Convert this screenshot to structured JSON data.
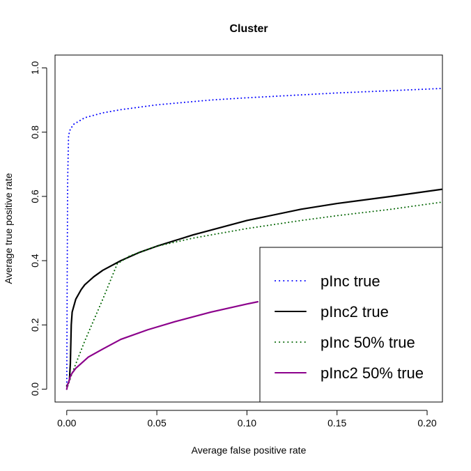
{
  "chart_data": {
    "type": "line",
    "title": "Cluster",
    "xlabel": "Average false positive rate",
    "ylabel": "Average true positive rate",
    "xlim": [
      -0.0065,
      0.2085
    ],
    "ylim": [
      -0.04,
      1.04
    ],
    "x_ticks": [
      0.0,
      0.05,
      0.1,
      0.15,
      0.2
    ],
    "x_tick_labels": [
      "0.00",
      "0.05",
      "0.10",
      "0.15",
      "0.20"
    ],
    "y_ticks": [
      0.0,
      0.2,
      0.4,
      0.6,
      0.8,
      1.0
    ],
    "y_tick_labels": [
      "0.0",
      "0.2",
      "0.4",
      "0.6",
      "0.8",
      "1.0"
    ],
    "grid": false,
    "legend_position": "bottom-right",
    "series": [
      {
        "name": "pInc true",
        "color": "#0000ff",
        "style": "dotted",
        "x": [
          0.0,
          0.0002,
          0.0005,
          0.001,
          0.002,
          0.004,
          0.007,
          0.01,
          0.02,
          0.03,
          0.05,
          0.08,
          0.1,
          0.15,
          0.2,
          0.208
        ],
        "y": [
          0.0,
          0.3,
          0.65,
          0.79,
          0.81,
          0.825,
          0.835,
          0.845,
          0.86,
          0.87,
          0.885,
          0.9,
          0.907,
          0.922,
          0.934,
          0.936
        ]
      },
      {
        "name": "pInc2 true",
        "color": "#000000",
        "style": "solid",
        "x": [
          0.0,
          0.001,
          0.0015,
          0.002,
          0.0025,
          0.003,
          0.005,
          0.008,
          0.01,
          0.015,
          0.02,
          0.03,
          0.04,
          0.05,
          0.07,
          0.1,
          0.13,
          0.15,
          0.18,
          0.208
        ],
        "y": [
          0.01,
          0.02,
          0.03,
          0.08,
          0.2,
          0.24,
          0.28,
          0.31,
          0.325,
          0.35,
          0.37,
          0.4,
          0.425,
          0.445,
          0.48,
          0.525,
          0.56,
          0.578,
          0.6,
          0.622
        ]
      },
      {
        "name": "pInc 50% true",
        "color": "#006400",
        "style": "dotted",
        "x": [
          0.0,
          0.003,
          0.01,
          0.02,
          0.028,
          0.035,
          0.05,
          0.07,
          0.1,
          0.13,
          0.15,
          0.18,
          0.208
        ],
        "y": [
          0.0,
          0.05,
          0.15,
          0.28,
          0.39,
          0.415,
          0.445,
          0.47,
          0.5,
          0.525,
          0.54,
          0.56,
          0.582
        ]
      },
      {
        "name": "pInc2 50% true",
        "color": "#8b008b",
        "style": "solid",
        "x": [
          0.0,
          0.0005,
          0.001,
          0.002,
          0.003,
          0.005,
          0.008,
          0.012,
          0.02,
          0.03,
          0.045,
          0.06,
          0.08,
          0.1,
          0.106
        ],
        "y": [
          0.0,
          0.015,
          0.02,
          0.04,
          0.05,
          0.065,
          0.08,
          0.1,
          0.125,
          0.155,
          0.185,
          0.21,
          0.24,
          0.265,
          0.272
        ]
      }
    ]
  }
}
